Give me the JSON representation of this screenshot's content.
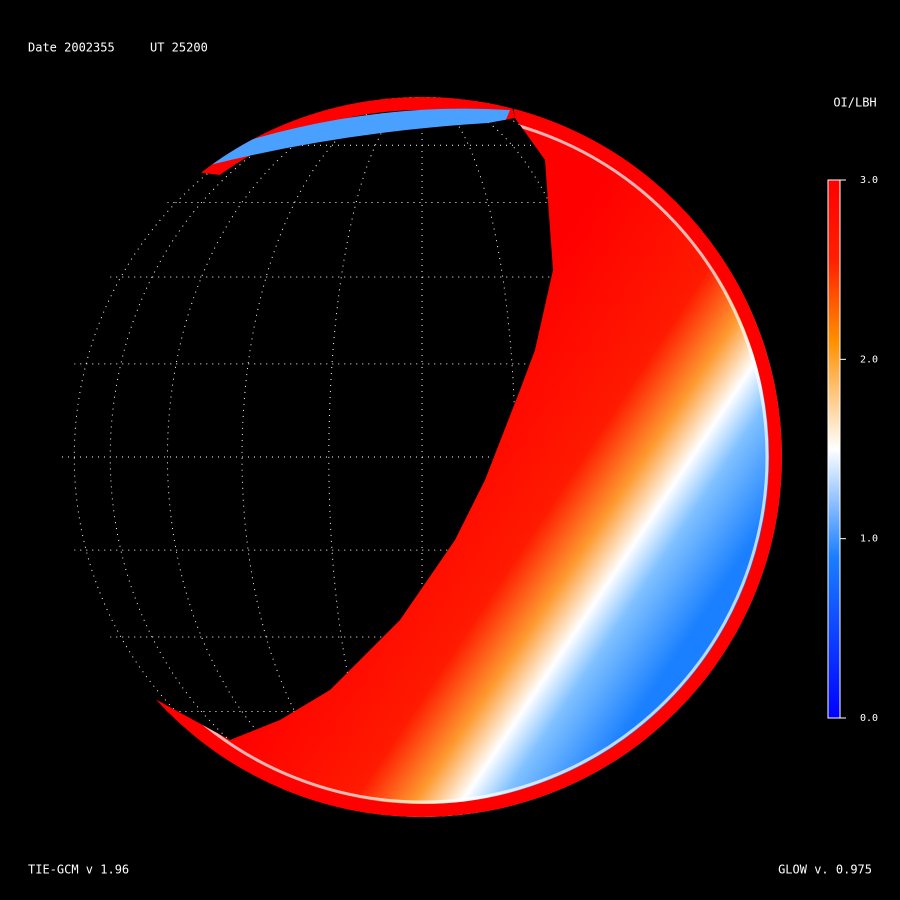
{
  "header": {
    "date": "Date 2002355",
    "time": "UT 25200"
  },
  "colorbar": {
    "title": "OI/LBH",
    "range": [
      0,
      3
    ],
    "ticks": [
      {
        "value": 3,
        "label": "3.0"
      },
      {
        "value": 2,
        "label": "2.0"
      },
      {
        "value": 1,
        "label": "1.0"
      },
      {
        "value": 0,
        "label": "0.0"
      }
    ]
  },
  "footer": {
    "left": "TIE-GCM v 1.96",
    "right": "GLOW v. 0.975"
  }
}
